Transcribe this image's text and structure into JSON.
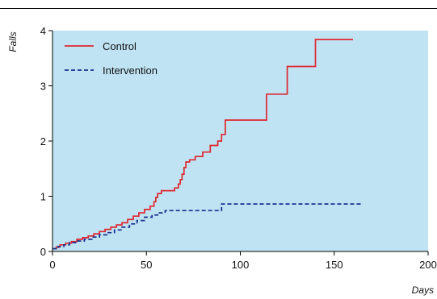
{
  "chart_data": {
    "type": "line",
    "title": "",
    "xlabel": "Days",
    "ylabel": "Falls",
    "xlim": [
      0,
      200
    ],
    "ylim": [
      0,
      4
    ],
    "xticks": [
      0,
      50,
      100,
      150,
      200
    ],
    "yticks": [
      0,
      1,
      2,
      3,
      4
    ],
    "grid": false,
    "background": "#bfe3f3",
    "legend_position": "top-left",
    "series": [
      {
        "name": "Control",
        "color": "#e0262e",
        "style": "solid",
        "step": true,
        "points": [
          [
            0,
            0.05
          ],
          [
            2,
            0.08
          ],
          [
            4,
            0.12
          ],
          [
            7,
            0.15
          ],
          [
            10,
            0.18
          ],
          [
            13,
            0.22
          ],
          [
            16,
            0.25
          ],
          [
            19,
            0.28
          ],
          [
            22,
            0.32
          ],
          [
            25,
            0.36
          ],
          [
            28,
            0.4
          ],
          [
            31,
            0.44
          ],
          [
            34,
            0.48
          ],
          [
            37,
            0.52
          ],
          [
            40,
            0.58
          ],
          [
            43,
            0.64
          ],
          [
            46,
            0.7
          ],
          [
            49,
            0.76
          ],
          [
            52,
            0.82
          ],
          [
            54,
            0.9
          ],
          [
            55,
            0.98
          ],
          [
            56,
            1.05
          ],
          [
            58,
            1.1
          ],
          [
            65,
            1.15
          ],
          [
            67,
            1.22
          ],
          [
            68,
            1.3
          ],
          [
            69,
            1.4
          ],
          [
            70,
            1.52
          ],
          [
            71,
            1.62
          ],
          [
            73,
            1.66
          ],
          [
            76,
            1.72
          ],
          [
            80,
            1.8
          ],
          [
            84,
            1.92
          ],
          [
            88,
            2.0
          ],
          [
            90,
            2.12
          ],
          [
            92,
            2.38
          ],
          [
            114,
            2.85
          ],
          [
            125,
            3.35
          ],
          [
            140,
            3.84
          ],
          [
            160,
            3.84
          ]
        ]
      },
      {
        "name": "Intervention",
        "color": "#1a2f8f",
        "style": "dashed",
        "step": true,
        "points": [
          [
            0,
            0.05
          ],
          [
            3,
            0.09
          ],
          [
            6,
            0.12
          ],
          [
            9,
            0.16
          ],
          [
            13,
            0.19
          ],
          [
            17,
            0.22
          ],
          [
            21,
            0.26
          ],
          [
            25,
            0.3
          ],
          [
            29,
            0.34
          ],
          [
            33,
            0.39
          ],
          [
            37,
            0.44
          ],
          [
            41,
            0.5
          ],
          [
            45,
            0.56
          ],
          [
            49,
            0.62
          ],
          [
            53,
            0.66
          ],
          [
            56,
            0.7
          ],
          [
            60,
            0.74
          ],
          [
            90,
            0.75
          ],
          [
            90,
            0.86
          ],
          [
            165,
            0.86
          ]
        ]
      }
    ]
  }
}
